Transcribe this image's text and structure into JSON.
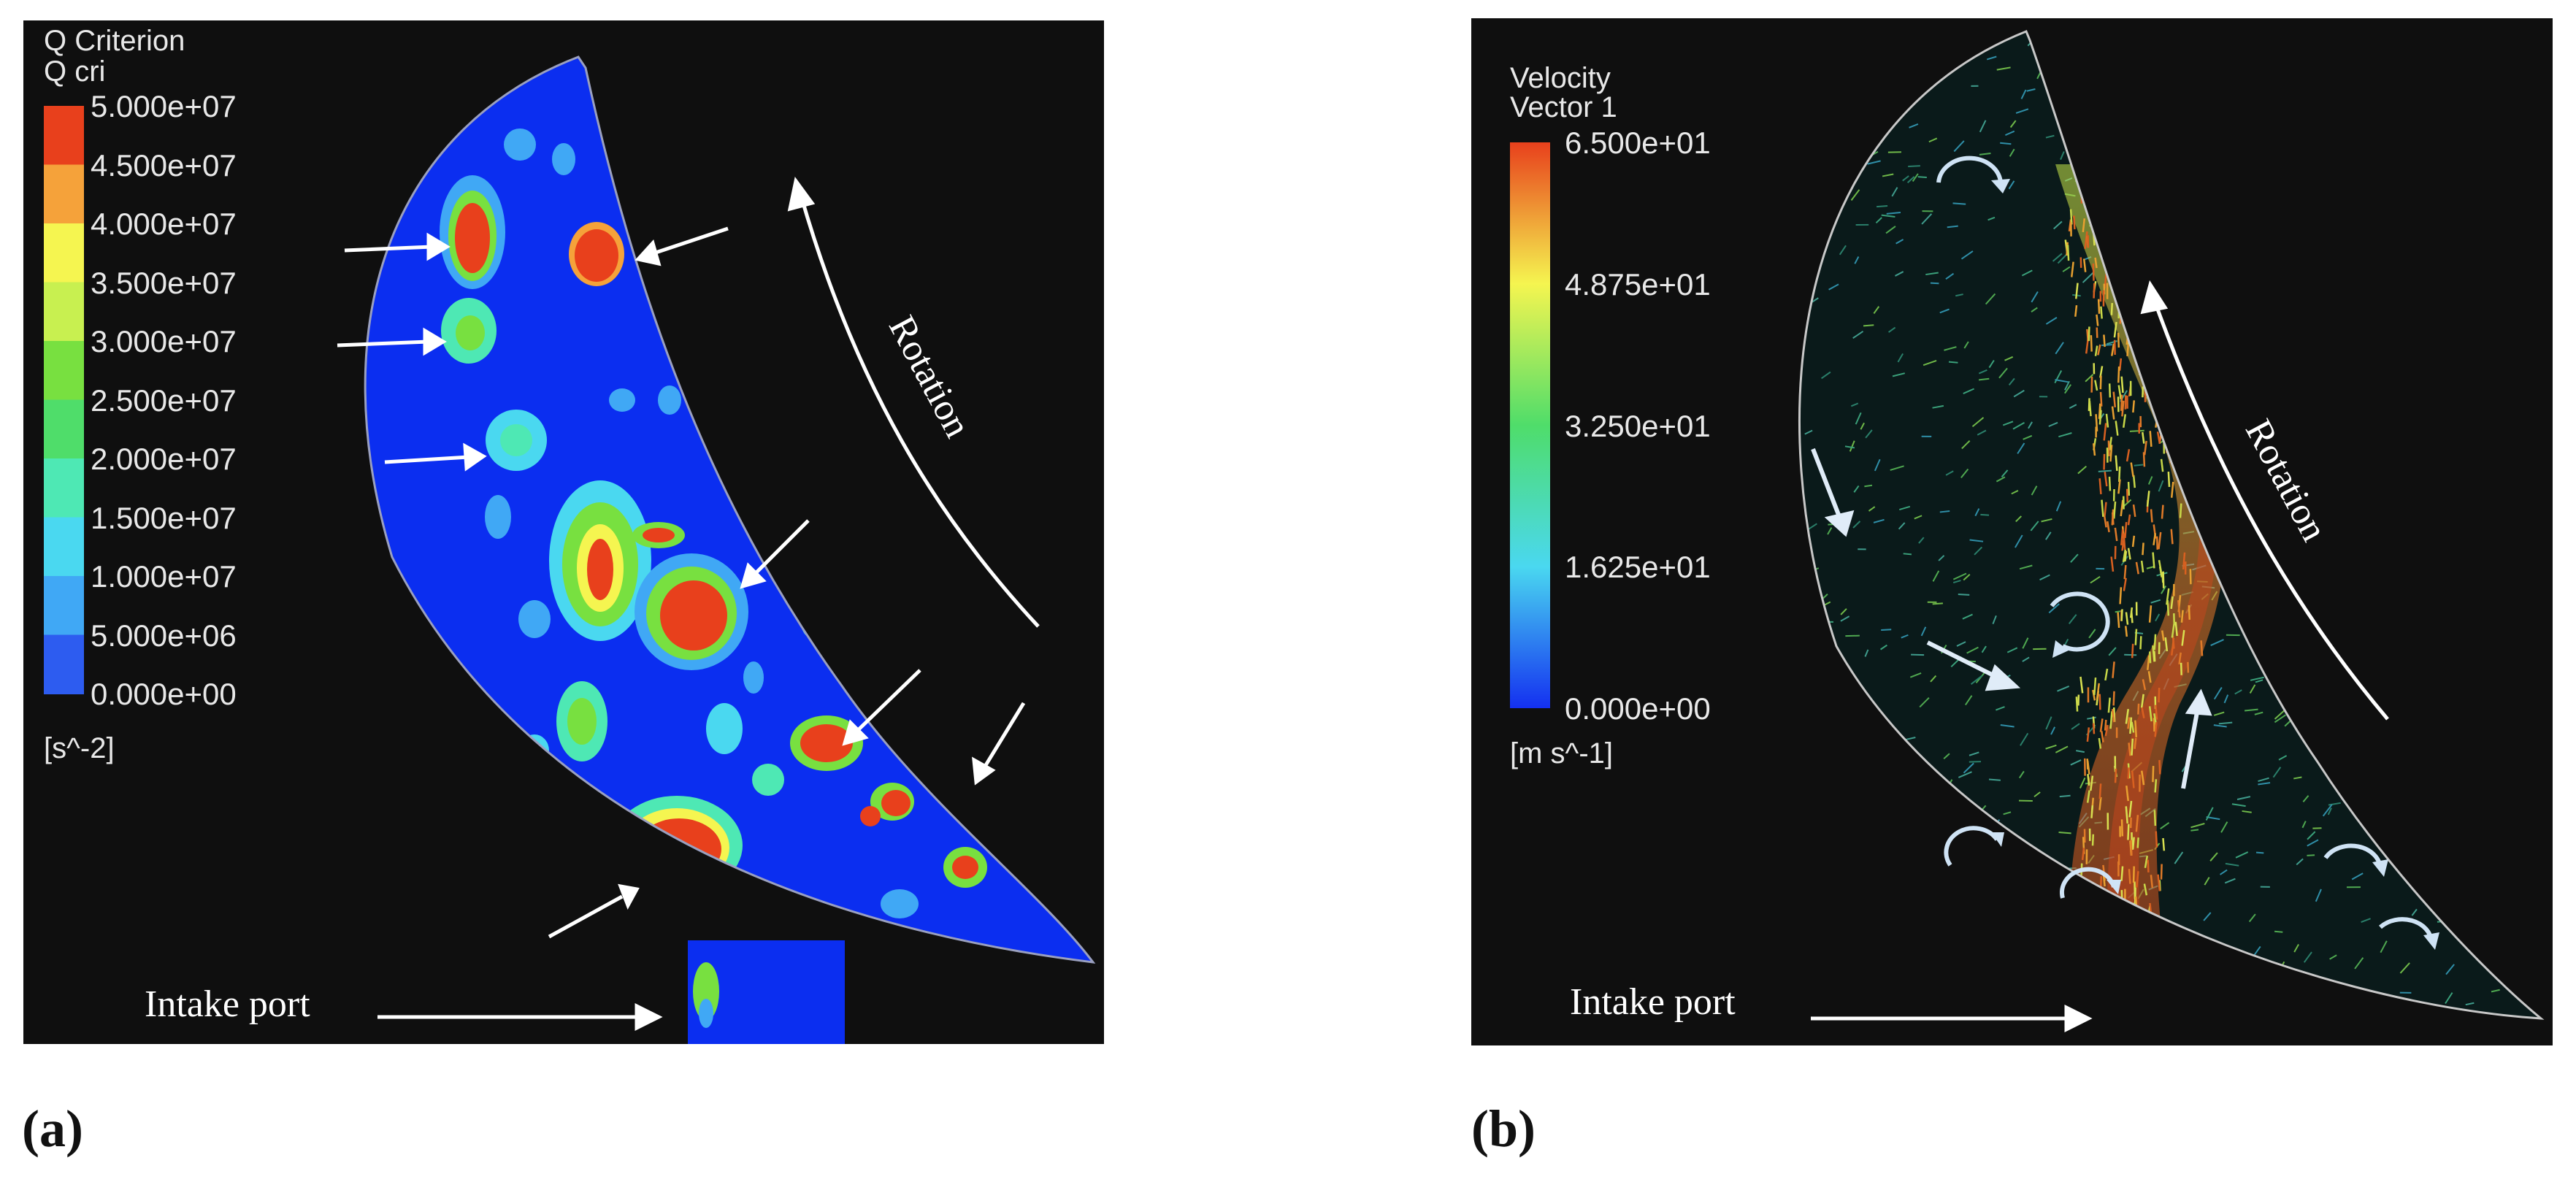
{
  "panel_a": {
    "legend_title": "Q Criterion",
    "legend_subtitle": "Q cri",
    "ticks": [
      "5.000e+07",
      "4.500e+07",
      "4.000e+07",
      "3.500e+07",
      "3.000e+07",
      "2.500e+07",
      "2.000e+07",
      "1.500e+07",
      "1.000e+07",
      "5.000e+06",
      "0.000e+00"
    ],
    "unit": "[s^-2]",
    "colors": [
      "#e8401c",
      "#f5a23a",
      "#f5f550",
      "#c8f050",
      "#78e040",
      "#4fdd6a",
      "#4ee8b4",
      "#4ad8f0",
      "#40a8f5",
      "#2d5cf0"
    ],
    "rotation_label": "Rotation",
    "intake_label": "Intake port",
    "caption": "(a)"
  },
  "panel_b": {
    "legend_title": "Velocity",
    "legend_subtitle": "Vector 1",
    "ticks": [
      "6.500e+01",
      "4.875e+01",
      "3.250e+01",
      "1.625e+01",
      "0.000e+00"
    ],
    "unit": "[m s^-1]",
    "colors": [
      "#e8401c",
      "#f5f550",
      "#4fdd6a",
      "#4ad8f0",
      "#1430f0"
    ],
    "rotation_label": "Rotation",
    "intake_label": "Intake port",
    "caption": "(b)"
  }
}
